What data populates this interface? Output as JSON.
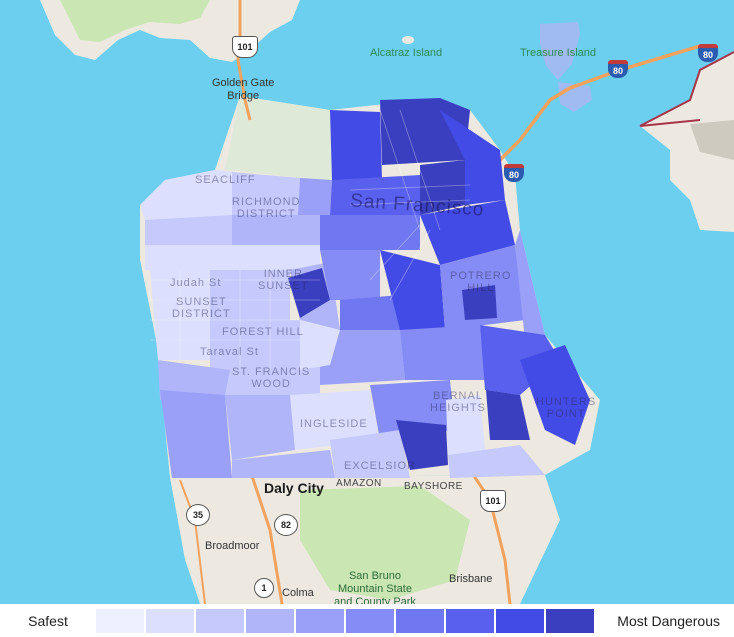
{
  "map": {
    "water_labels": [
      "Alcatraz Island",
      "Treasure Island"
    ],
    "land_labels": {
      "golden_gate": "Golden Gate\nBridge",
      "daly_city": "Daly City",
      "amazon": "AMAZON",
      "bayshore": "BAYSHORE",
      "broadmoor": "Broadmoor",
      "colma": "Colma",
      "brisbane": "Brisbane",
      "san_bruno_park": "San Bruno\nMountain State\nand County Park"
    },
    "faint_labels": {
      "san_francisco": "San Francisco",
      "seacliff": "SEACLIFF",
      "richmond": "RICHMOND\nDISTRICT",
      "sunset": "SUNSET\nDISTRICT",
      "forest_hill": "FOREST HILL",
      "st_francis": "ST. FRANCIS\nWOOD",
      "taraval": "Taraval St",
      "judah": "Judah St",
      "inner_sunset": "INNER\nSUNSET",
      "bernal": "BERNAL\nHEIGHTS",
      "potrero": "POTRERO\nHILL",
      "hunters_point": "HUNTERS\nPOINT",
      "excelsior": "EXCELSIOR",
      "ingleside": "INGLESIDE"
    },
    "shields": {
      "us101_north": "101",
      "us101_south": "101",
      "i80_west": "80",
      "i80_east": "80",
      "i80_bridge": "80",
      "ca35": "35",
      "ca82": "82",
      "ca1": "1"
    },
    "colors": {
      "water": "#6ccff0",
      "land": "#ede9e1",
      "park": "#c9e6b3",
      "highway": "#f2a25c",
      "oakland_outline": "#a8344a"
    }
  },
  "legend": {
    "safest_label": "Safest",
    "most_dangerous_label": "Most Dangerous",
    "scale_colors": [
      "#eef0ff",
      "#dcdffe",
      "#c5c9fc",
      "#b0b5fa",
      "#9aa0f8",
      "#858cf5",
      "#6f77f1",
      "#5960ed",
      "#434be6",
      "#3a3fc0"
    ]
  }
}
